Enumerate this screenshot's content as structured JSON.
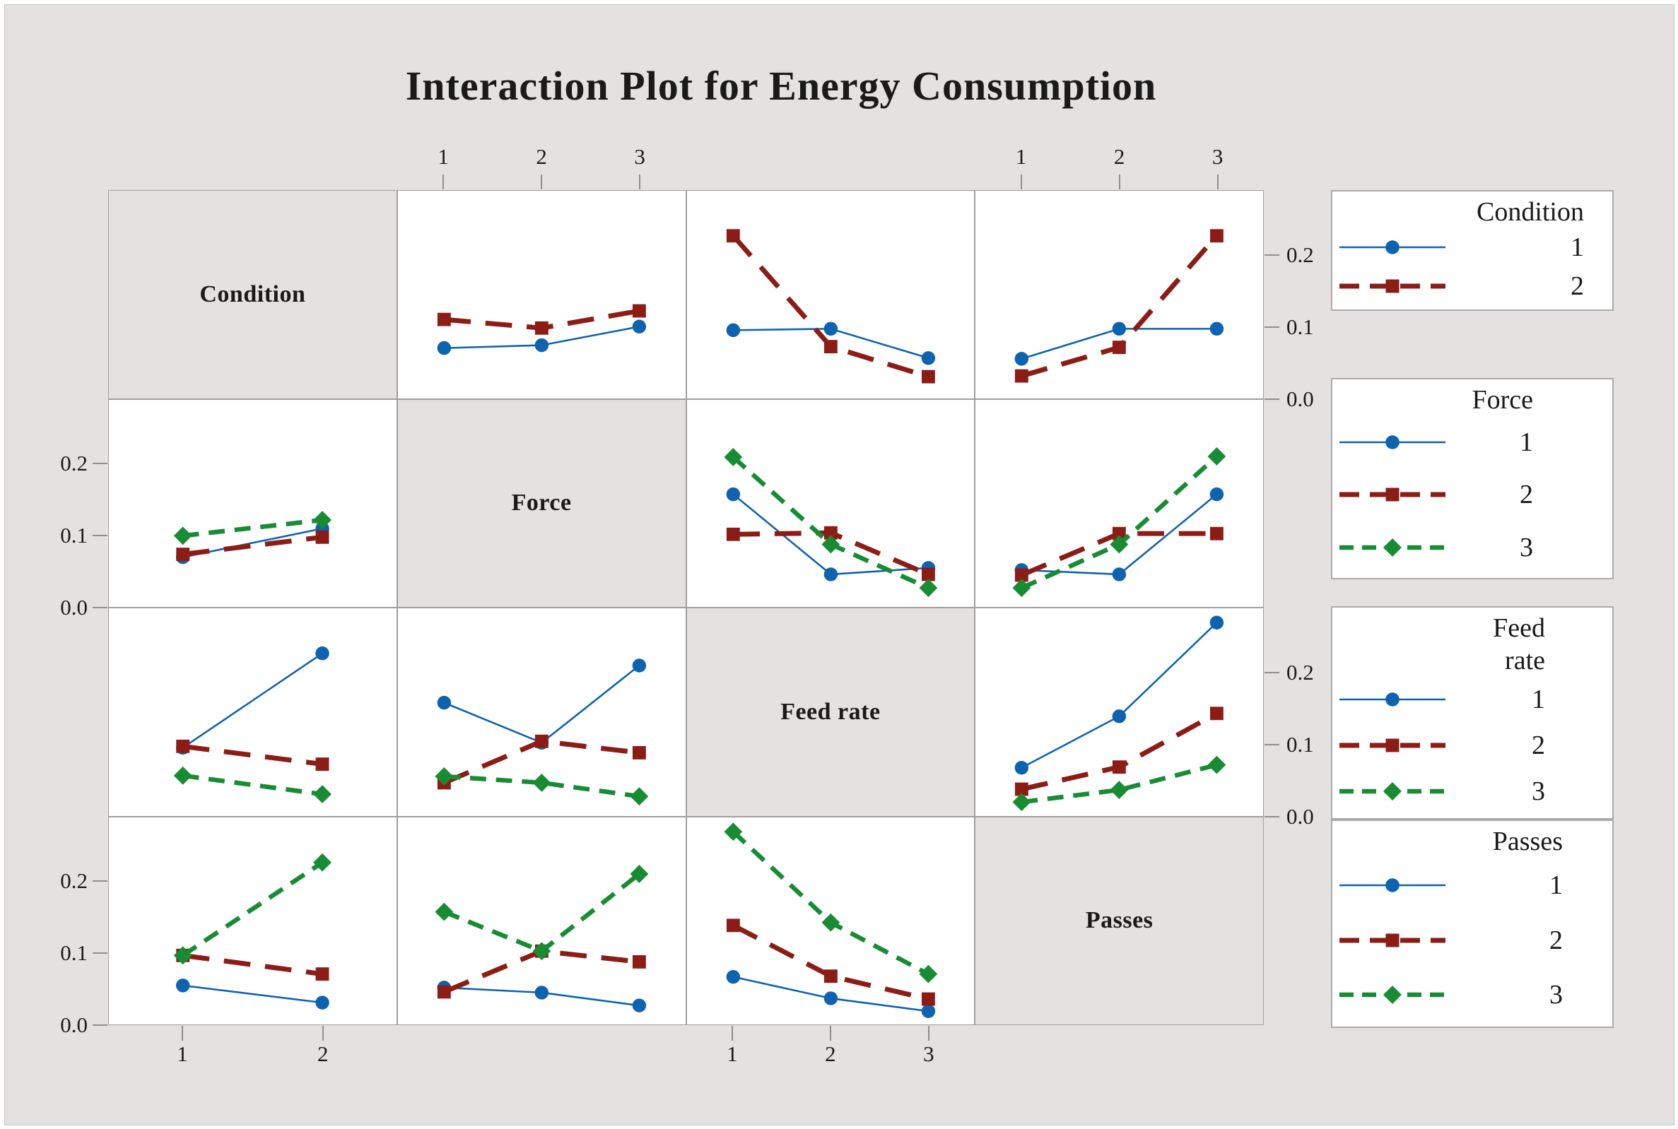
{
  "title": "Interaction Plot for Energy Consumption",
  "colors": {
    "background": "#e3e2e0",
    "panel": "#ffffff",
    "grid_border": "#9f9f9f",
    "series1_blue": "#0e63b0",
    "series2_red": "#8c1d16",
    "series3_green": "#188c33"
  },
  "chart_data": {
    "type": "line",
    "title": "Interaction Plot for Energy Consumption",
    "ylim": [
      0,
      0.29
    ],
    "yticks": [
      0.2,
      0.1,
      0.0
    ],
    "ytick_labels": [
      "0.2",
      "0.1",
      "0.0"
    ],
    "grid": "matrix-4x4",
    "legend_position": "right",
    "factors": [
      {
        "name": "Condition",
        "levels": [
          "1",
          "2"
        ]
      },
      {
        "name": "Force",
        "levels": [
          "1",
          "2",
          "3"
        ]
      },
      {
        "name": "Feed rate",
        "levels": [
          "1",
          "2",
          "3"
        ]
      },
      {
        "name": "Passes",
        "levels": [
          "1",
          "2",
          "3"
        ]
      }
    ],
    "series_styles": [
      {
        "level": "1",
        "color": "#0e63b0",
        "marker": "circle",
        "line": "solid"
      },
      {
        "level": "2",
        "color": "#8c1d16",
        "marker": "square",
        "line": "dashed-long"
      },
      {
        "level": "3",
        "color": "#188c33",
        "marker": "diamond",
        "line": "dashed-short"
      }
    ],
    "axes": {
      "top_labeled_columns": [
        {
          "factor": "Force",
          "labels": [
            "1",
            "2",
            "3"
          ]
        },
        {
          "factor": "Passes",
          "labels": [
            "1",
            "2",
            "3"
          ]
        }
      ],
      "bottom_labeled_columns": [
        {
          "factor": "Condition",
          "labels": [
            "1",
            "2"
          ]
        },
        {
          "factor": "Feed rate",
          "labels": [
            "1",
            "2",
            "3"
          ]
        }
      ],
      "left_labeled_rows": [
        {
          "factor": "Force",
          "labels": [
            "0.2",
            "0.1",
            "0.0"
          ]
        },
        {
          "factor": "Passes",
          "labels": [
            "0.2",
            "0.1",
            "0.0"
          ]
        }
      ],
      "right_labeled_rows": [
        {
          "factor": "Condition",
          "labels": [
            "0.2",
            "0.1",
            "0.0"
          ]
        },
        {
          "factor": "Feed rate",
          "labels": [
            "0.2",
            "0.1",
            "0.0"
          ]
        }
      ]
    },
    "panels": [
      {
        "row": "Condition",
        "col": "Force",
        "x_levels": [
          "1",
          "2",
          "3"
        ],
        "series": [
          {
            "name": "Condition 1",
            "values": [
              0.07,
              0.074,
              0.1
            ]
          },
          {
            "name": "Condition 2",
            "values": [
              0.11,
              0.098,
              0.122
            ]
          }
        ]
      },
      {
        "row": "Condition",
        "col": "Feed rate",
        "x_levels": [
          "1",
          "2",
          "3"
        ],
        "series": [
          {
            "name": "Condition 1",
            "values": [
              0.095,
              0.097,
              0.056
            ]
          },
          {
            "name": "Condition 2",
            "values": [
              0.227,
              0.072,
              0.03
            ]
          }
        ]
      },
      {
        "row": "Condition",
        "col": "Passes",
        "x_levels": [
          "1",
          "2",
          "3"
        ],
        "series": [
          {
            "name": "Condition 1",
            "values": [
              0.055,
              0.097,
              0.097
            ]
          },
          {
            "name": "Condition 2",
            "values": [
              0.031,
              0.071,
              0.227
            ]
          }
        ]
      },
      {
        "row": "Force",
        "col": "Condition",
        "x_levels": [
          "1",
          "2"
        ],
        "series": [
          {
            "name": "Force 1",
            "values": [
              0.07,
              0.11
            ]
          },
          {
            "name": "Force 2",
            "values": [
              0.074,
              0.098
            ]
          },
          {
            "name": "Force 3",
            "values": [
              0.1,
              0.122
            ]
          }
        ]
      },
      {
        "row": "Force",
        "col": "Feed rate",
        "x_levels": [
          "1",
          "2",
          "3"
        ],
        "series": [
          {
            "name": "Force 1",
            "values": [
              0.158,
              0.046,
              0.055
            ]
          },
          {
            "name": "Force 2",
            "values": [
              0.102,
              0.104,
              0.046
            ]
          },
          {
            "name": "Force 3",
            "values": [
              0.21,
              0.088,
              0.027
            ]
          }
        ]
      },
      {
        "row": "Force",
        "col": "Passes",
        "x_levels": [
          "1",
          "2",
          "3"
        ],
        "series": [
          {
            "name": "Force 1",
            "values": [
              0.052,
              0.046,
              0.158
            ]
          },
          {
            "name": "Force 2",
            "values": [
              0.045,
              0.103,
              0.103
            ]
          },
          {
            "name": "Force 3",
            "values": [
              0.027,
              0.088,
              0.211
            ]
          }
        ]
      },
      {
        "row": "Feed rate",
        "col": "Condition",
        "x_levels": [
          "1",
          "2"
        ],
        "series": [
          {
            "name": "Feed rate 1",
            "values": [
              0.095,
              0.227
            ]
          },
          {
            "name": "Feed rate 2",
            "values": [
              0.097,
              0.072
            ]
          },
          {
            "name": "Feed rate 3",
            "values": [
              0.056,
              0.03
            ]
          }
        ]
      },
      {
        "row": "Feed rate",
        "col": "Force",
        "x_levels": [
          "1",
          "2",
          "3"
        ],
        "series": [
          {
            "name": "Feed rate 1",
            "values": [
              0.158,
              0.102,
              0.21
            ]
          },
          {
            "name": "Feed rate 2",
            "values": [
              0.046,
              0.104,
              0.088
            ]
          },
          {
            "name": "Feed rate 3",
            "values": [
              0.055,
              0.046,
              0.027
            ]
          }
        ]
      },
      {
        "row": "Feed rate",
        "col": "Passes",
        "x_levels": [
          "1",
          "2",
          "3"
        ],
        "series": [
          {
            "name": "Feed rate 1",
            "values": [
              0.067,
              0.139,
              0.27
            ]
          },
          {
            "name": "Feed rate 2",
            "values": [
              0.037,
              0.068,
              0.143
            ]
          },
          {
            "name": "Feed rate 3",
            "values": [
              0.019,
              0.036,
              0.071
            ]
          }
        ]
      },
      {
        "row": "Passes",
        "col": "Condition",
        "x_levels": [
          "1",
          "2"
        ],
        "series": [
          {
            "name": "Passes 1",
            "values": [
              0.055,
              0.031
            ]
          },
          {
            "name": "Passes 2",
            "values": [
              0.097,
              0.071
            ]
          },
          {
            "name": "Passes 3",
            "values": [
              0.097,
              0.227
            ]
          }
        ]
      },
      {
        "row": "Passes",
        "col": "Force",
        "x_levels": [
          "1",
          "2",
          "3"
        ],
        "series": [
          {
            "name": "Passes 1",
            "values": [
              0.052,
              0.045,
              0.027
            ]
          },
          {
            "name": "Passes 2",
            "values": [
              0.046,
              0.103,
              0.088
            ]
          },
          {
            "name": "Passes 3",
            "values": [
              0.158,
              0.103,
              0.211
            ]
          }
        ]
      },
      {
        "row": "Passes",
        "col": "Feed rate",
        "x_levels": [
          "1",
          "2",
          "3"
        ],
        "series": [
          {
            "name": "Passes 1",
            "values": [
              0.067,
              0.037,
              0.019
            ]
          },
          {
            "name": "Passes 2",
            "values": [
              0.139,
              0.068,
              0.036
            ]
          },
          {
            "name": "Passes 3",
            "values": [
              0.27,
              0.143,
              0.071
            ]
          }
        ]
      }
    ],
    "legends": [
      {
        "title_lines": [
          "Condition"
        ],
        "items": [
          "1",
          "2"
        ]
      },
      {
        "title_lines": [
          "Force"
        ],
        "items": [
          "1",
          "2",
          "3"
        ]
      },
      {
        "title_lines": [
          "Feed",
          "rate"
        ],
        "items": [
          "1",
          "2",
          "3"
        ]
      },
      {
        "title_lines": [
          "Passes"
        ],
        "items": [
          "1",
          "2",
          "3"
        ]
      }
    ]
  }
}
